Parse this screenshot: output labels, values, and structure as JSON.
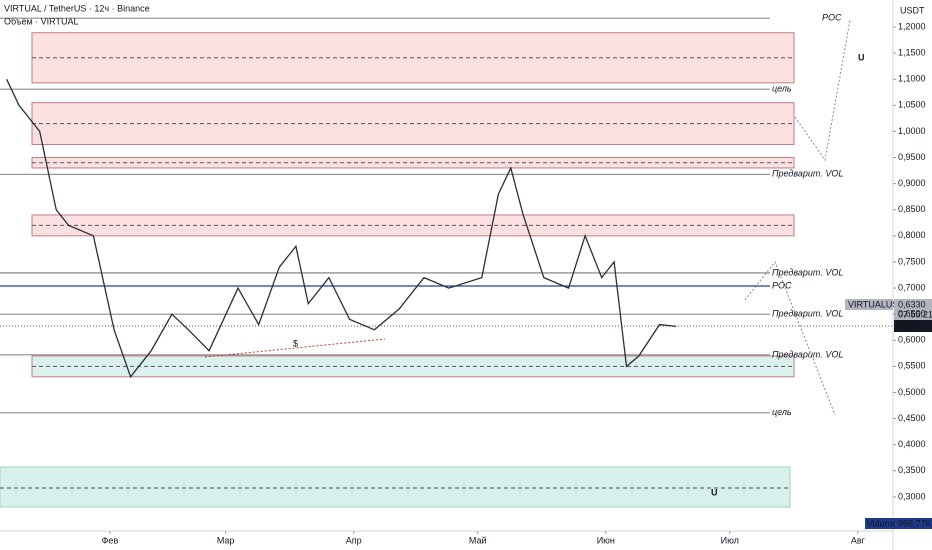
{
  "chart_data": {
    "type": "line",
    "title": "VIRTUAL / TetherUS · 12ч · Binance",
    "subtitle": "Объём · VIRTUAL",
    "y_axis_unit": "USDT",
    "symbol": "VIRTUALUSDT",
    "last_price_label": "0,6330",
    "countdown": "07:55:21",
    "current_price_label": "0,6265",
    "volume_label": "Volume",
    "volume_value": "998,77K",
    "dollar_mark": "$",
    "color": "#2a2e39",
    "x": [
      6,
      9,
      14,
      18,
      21,
      27,
      32,
      36,
      41,
      46,
      50,
      55,
      62,
      67,
      72,
      76,
      79,
      84,
      89,
      95,
      101,
      107,
      113,
      121,
      125,
      128,
      131,
      136,
      142,
      146,
      150,
      153,
      156,
      159,
      164,
      168
    ],
    "values": [
      1.1,
      1.05,
      1.0,
      0.85,
      0.82,
      0.8,
      0.62,
      0.53,
      0.58,
      0.65,
      0.62,
      0.58,
      0.7,
      0.63,
      0.74,
      0.78,
      0.67,
      0.72,
      0.64,
      0.62,
      0.66,
      0.72,
      0.7,
      0.72,
      0.88,
      0.93,
      0.84,
      0.72,
      0.7,
      0.8,
      0.72,
      0.75,
      0.55,
      0.57,
      0.63,
      0.6265
    ],
    "xlim": [
      4.4,
      220.5
    ],
    "xticks": [
      {
        "value": 31,
        "label": "Фев"
      },
      {
        "value": 59,
        "label": "Мар"
      },
      {
        "value": 90,
        "label": "Апр"
      },
      {
        "value": 120,
        "label": "Май"
      },
      {
        "value": 151,
        "label": "Июн"
      },
      {
        "value": 181,
        "label": "Июл"
      },
      {
        "value": 212,
        "label": "Авг"
      }
    ],
    "ylim": [
      0.2347,
      1.2517
    ],
    "yticks": [
      {
        "value": 0.3,
        "label": "0,3000"
      },
      {
        "value": 0.35,
        "label": "0,3500"
      },
      {
        "value": 0.4,
        "label": "0,4000"
      },
      {
        "value": 0.45,
        "label": "0,4500"
      },
      {
        "value": 0.5,
        "label": "0,5000"
      },
      {
        "value": 0.55,
        "label": "0,5500"
      },
      {
        "value": 0.6,
        "label": "0,6000"
      },
      {
        "value": 0.65,
        "label": "0,6500"
      },
      {
        "value": 0.7,
        "label": "0,7000"
      },
      {
        "value": 0.75,
        "label": "0,7500"
      },
      {
        "value": 0.8,
        "label": "0,8000"
      },
      {
        "value": 0.85,
        "label": "0,8500"
      },
      {
        "value": 0.9,
        "label": "0,9000"
      },
      {
        "value": 0.95,
        "label": "0,9500"
      },
      {
        "value": 1.0,
        "label": "1,0000"
      },
      {
        "value": 1.05,
        "label": "1,0500"
      },
      {
        "value": 1.1,
        "label": "1,1000"
      },
      {
        "value": 1.15,
        "label": "1,1500"
      },
      {
        "value": 1.2,
        "label": "1,2000"
      }
    ],
    "zones": [
      {
        "color": "#f7c6c9",
        "range": [
          1.093,
          1.189
        ]
      },
      {
        "color": "#f7c6c9",
        "range": [
          0.975,
          1.055
        ]
      },
      {
        "color": "#f7c6c9",
        "range": [
          0.93,
          0.95
        ]
      },
      {
        "color": "#f7c6c9",
        "range": [
          0.8,
          0.84
        ]
      },
      {
        "color": "#bfe6df",
        "range": [
          0.53,
          0.57
        ]
      }
    ],
    "annotations": [
      {
        "text": "POC",
        "price": 1.217
      },
      {
        "text": "цель",
        "price": 1.081
      },
      {
        "text": "Предварит. VOL",
        "price": 0.918
      },
      {
        "text": "Предварит. VOL",
        "price": 0.729
      },
      {
        "text": "POC",
        "price": 0.704
      },
      {
        "text": "Предварит. VOL",
        "price": 0.65
      },
      {
        "text": "Предварит. VOL",
        "price": 0.572
      },
      {
        "text": "цель",
        "price": 0.461
      }
    ]
  }
}
